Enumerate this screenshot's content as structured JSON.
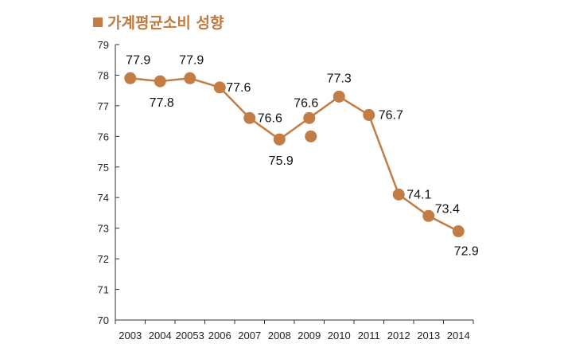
{
  "colors": {
    "accent": "#c37c44",
    "axis": "#333333"
  },
  "chart_data": {
    "type": "line",
    "title": "가계평균소비 성향",
    "categories": [
      "2003",
      "2004",
      "20053",
      "2006",
      "2007",
      "2008",
      "2009",
      "2010",
      "2011",
      "2012",
      "2013",
      "2014"
    ],
    "series": [
      {
        "values": [
          77.9,
          77.8,
          77.9,
          77.6,
          76.6,
          75.9,
          76.6,
          77.3,
          76.7,
          74.1,
          73.4,
          72.9
        ]
      }
    ],
    "extra_points": [
      {
        "category": "2009",
        "value": 76.0
      }
    ],
    "value_labels": [
      "77.9",
      "77.8",
      "77.9",
      "77.6",
      "76.6",
      "75.9",
      "76.6",
      "77.3",
      "76.7",
      "74.1",
      "73.4",
      "72.9"
    ],
    "ylim": [
      70,
      79
    ],
    "yticks": [
      "70",
      "71",
      "72",
      "73",
      "74",
      "75",
      "76",
      "77",
      "78",
      "79"
    ],
    "xlabel": "",
    "ylabel": "",
    "grid": false,
    "legend": "none"
  }
}
